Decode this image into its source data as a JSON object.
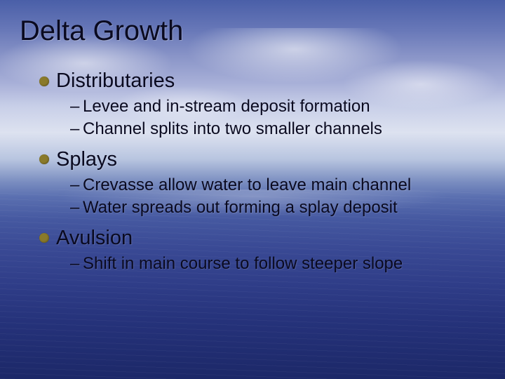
{
  "slide": {
    "title": "Delta Growth",
    "bullet_color": "#8a7a2a",
    "title_color": "#0a0a20",
    "text_color": "#0a0a20",
    "title_fontsize": 40,
    "bullet_fontsize": 29,
    "sub_fontsize": 24,
    "background_gradient_top": "#4a5fa8",
    "background_gradient_horizon": "#b8c5e0",
    "background_gradient_bottom": "#1c2868",
    "items": [
      {
        "label": "Distributaries",
        "subs": [
          "Levee and in-stream deposit formation",
          "Channel splits into two smaller channels"
        ]
      },
      {
        "label": "Splays",
        "subs": [
          "Crevasse allow water to leave main channel",
          "Water spreads out forming a splay deposit"
        ]
      },
      {
        "label": "Avulsion",
        "subs": [
          "Shift in main course to follow steeper slope"
        ]
      }
    ]
  }
}
